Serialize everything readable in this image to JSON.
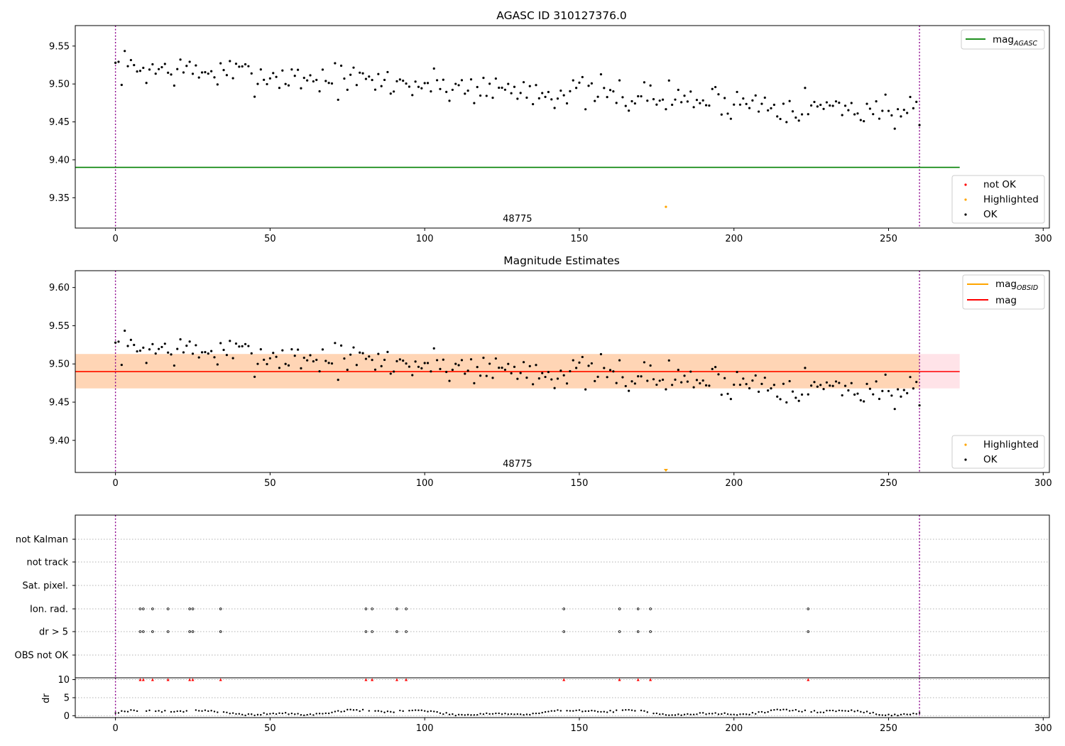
{
  "figure": {
    "title": "AGASC ID 310127376.0",
    "mag_panel_title": "Magnitude Estimates",
    "obsid_label": "48775",
    "x_ticks": [
      0,
      50,
      100,
      150,
      200,
      250,
      300
    ]
  },
  "legend": {
    "mag_agasc_base": "mag",
    "mag_agasc_sub": "AGASC",
    "not_ok": "not OK",
    "highlighted": "Highlighted",
    "ok": "OK",
    "mag_obsid_base": "mag",
    "mag_obsid_sub": "OBSID",
    "mag": "mag"
  },
  "flags": {
    "categories": [
      "not Kalman",
      "not track",
      "Sat. pixel.",
      "Ion. rad.",
      "dr > 5",
      "OBS not OK"
    ],
    "ion_rad_x": [
      8,
      9,
      12,
      17,
      24,
      25,
      34,
      81,
      83,
      91,
      94,
      145,
      163,
      169,
      173,
      224
    ],
    "dr5_x": [
      8,
      9,
      12,
      17,
      24,
      25,
      34,
      81,
      83,
      91,
      94,
      145,
      163,
      169,
      173,
      224
    ]
  },
  "colors": {
    "ok": "#000000",
    "not_ok": "#ff0000",
    "highlighted": "#ffa500",
    "agasc_line": "#008000",
    "mag_line": "#ff0000",
    "mag_band": "#ffc0cb",
    "obsid_band": "#ffa500",
    "obs_boundary": "#8b008b"
  },
  "chart_data": [
    {
      "type": "scatter",
      "title": "AGASC ID 310127376.0",
      "xlim": [
        -13,
        302
      ],
      "ylim": [
        9.31,
        9.577
      ],
      "yticks": [
        9.35,
        9.4,
        9.45,
        9.5,
        9.55
      ],
      "mag_agasc": 9.39,
      "mag_agasc_xrange": [
        -13,
        273
      ],
      "obs_boundaries": [
        0,
        260
      ],
      "highlighted_point": [
        178,
        9.338
      ],
      "series_ok": {
        "name": "OK",
        "start": 0,
        "step": 1,
        "y_start": 9.522,
        "y_end": 9.463,
        "noise_seed": 7,
        "noise_amp": 0.016
      }
    },
    {
      "type": "scatter",
      "title": "Magnitude Estimates",
      "xlim": [
        -13,
        302
      ],
      "ylim": [
        9.358,
        9.622
      ],
      "yticks": [
        9.4,
        9.45,
        9.5,
        9.55,
        9.6
      ],
      "mag": 9.49,
      "mag_band": [
        9.468,
        9.513
      ],
      "mag_band_xrange": [
        -13,
        273
      ],
      "mag_obsid": 9.49,
      "mag_obsid_band": [
        9.468,
        9.513
      ],
      "mag_obsid_xrange": [
        -13,
        260
      ],
      "obs_boundaries": [
        0,
        260
      ],
      "highlighted_marker_x": 178
    },
    {
      "type": "scatter",
      "title": "",
      "ylabel": "dr",
      "xlim": [
        -13,
        302
      ],
      "ylim": [
        -0.5,
        10.5
      ],
      "yticks": [
        0,
        5,
        10
      ],
      "obs_boundaries": [
        0,
        260
      ],
      "dr_series": {
        "start": 0,
        "step": 1,
        "typical": [
          0.2,
          1.8
        ]
      },
      "dr_capped_x": [
        8,
        9,
        12,
        17,
        24,
        25,
        34,
        81,
        83,
        91,
        94,
        145,
        163,
        169,
        173,
        224
      ],
      "dr_capped_value": 10
    }
  ]
}
